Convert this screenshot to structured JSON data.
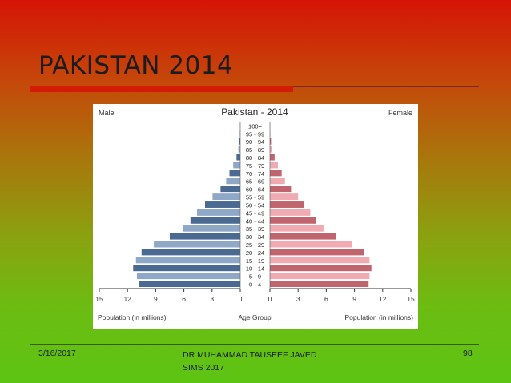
{
  "slide": {
    "title": "PAKISTAN 2014",
    "footer": {
      "date": "3/16/2017",
      "author_line1": "DR MUHAMMAD TAUSEEF JAVED",
      "author_line2": "SIMS 2017",
      "page": "98"
    }
  },
  "chart_data": {
    "type": "bar",
    "orientation": "horizontal-pyramid",
    "title": "Pakistan - 2014",
    "left_label": "Male",
    "right_label": "Female",
    "xlabel_left": "Population (in millions)",
    "xlabel_center": "Age Group",
    "xlabel_right": "Population (in millions)",
    "xlim": [
      0,
      15
    ],
    "x_ticks": [
      15,
      12,
      9,
      6,
      3,
      0
    ],
    "x_ticks_right": [
      0,
      3,
      6,
      9,
      12,
      15
    ],
    "categories": [
      "100+",
      "95 - 99",
      "90 - 94",
      "85 - 89",
      "80 - 84",
      "75 - 79",
      "70 - 74",
      "65 - 69",
      "60 - 64",
      "55 - 59",
      "50 - 54",
      "45 - 49",
      "40 - 44",
      "35 - 39",
      "30 - 34",
      "25 - 29",
      "20 - 24",
      "15 - 19",
      "10 - 14",
      "5 - 9",
      "0 - 4"
    ],
    "series": [
      {
        "name": "Male",
        "side": "left",
        "colors": [
          "#4b6a92",
          "#8fa8c8"
        ],
        "values": [
          0.02,
          0.05,
          0.1,
          0.2,
          0.4,
          0.75,
          1.15,
          1.5,
          2.1,
          2.95,
          3.75,
          4.6,
          5.3,
          6.1,
          7.5,
          9.2,
          10.5,
          11.1,
          11.4,
          11.0,
          10.8
        ]
      },
      {
        "name": "Female",
        "side": "right",
        "colors": [
          "#c0646e",
          "#f0aab2"
        ],
        "values": [
          0.02,
          0.05,
          0.12,
          0.25,
          0.5,
          0.85,
          1.25,
          1.6,
          2.25,
          3.0,
          3.6,
          4.3,
          4.9,
          5.7,
          7.0,
          8.7,
          10.0,
          10.6,
          10.8,
          10.6,
          10.5
        ]
      }
    ]
  }
}
